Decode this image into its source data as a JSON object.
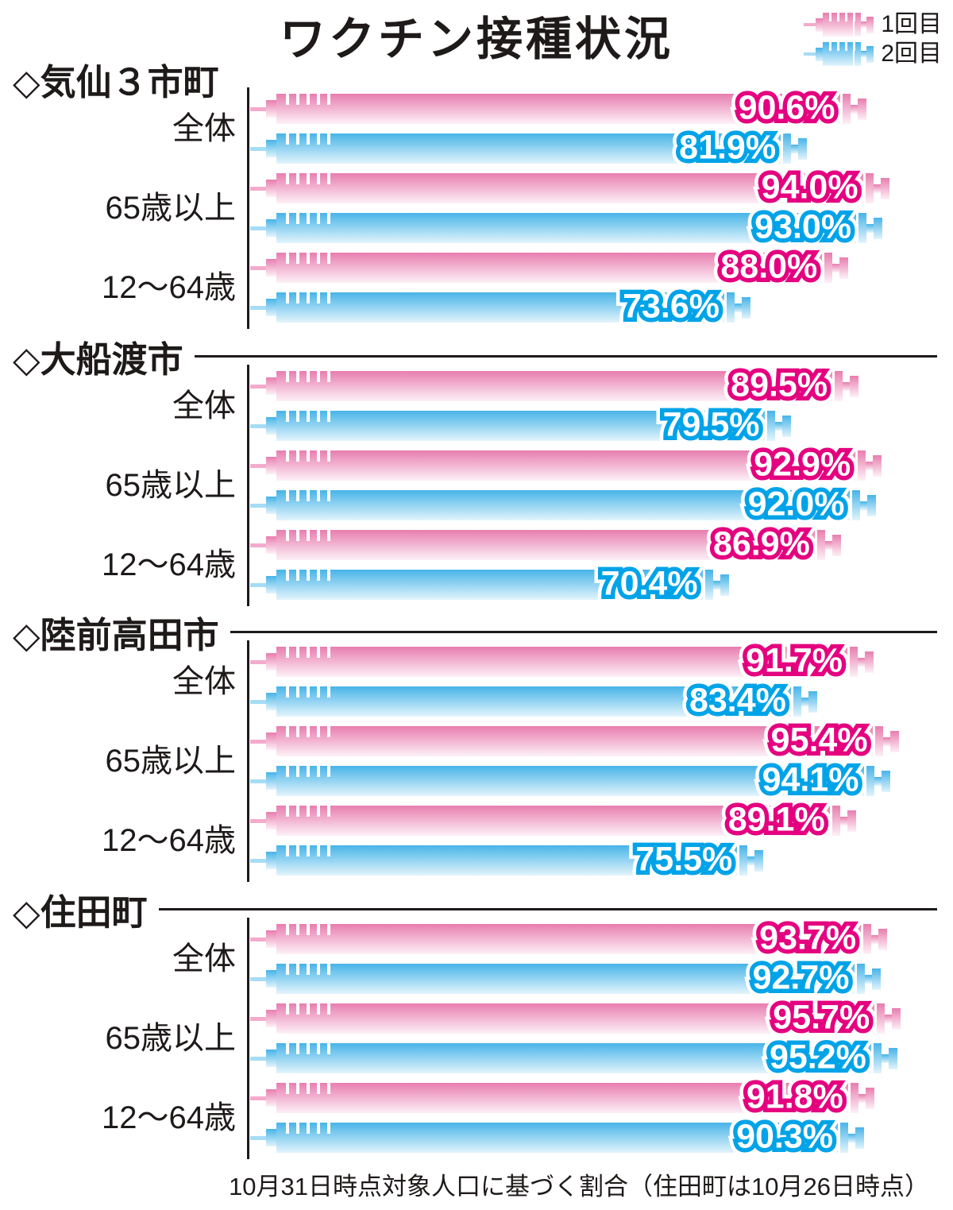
{
  "title": "ワクチン接種状況",
  "section_marker": "◇",
  "legend": [
    {
      "label": "1回目",
      "color_key": "pink"
    },
    {
      "label": "2回目",
      "color_key": "blue"
    }
  ],
  "footer": "10月31日時点対象人口に基づく割合（住田町は10月26日時点）",
  "colors": {
    "dose1_stroke": "#e4007f",
    "dose2_stroke": "#00a3e8",
    "pink_top": "#e87daf",
    "pink_bottom": "#fdf1f7",
    "blue_top": "#47b4e8",
    "blue_bottom": "#e3f4fc",
    "pink_needle": "#f3abcd",
    "blue_needle": "#a6dcf5"
  },
  "chart_data": {
    "type": "bar",
    "orientation": "horizontal",
    "unit": "%",
    "xlim": [
      0,
      100
    ],
    "title": "ワクチン接種状況",
    "series_names": [
      "1回目",
      "2回目"
    ],
    "legend_position": "top-right",
    "grid": false,
    "note": "10月31日時点対象人口に基づく割合（住田町は10月26日時点）",
    "sections": [
      {
        "name": "気仙３市町",
        "show_rule": false,
        "groups": [
          {
            "label": "全体",
            "dose1": 90.6,
            "dose2": 81.9
          },
          {
            "label": "65歳以上",
            "dose1": 94.0,
            "dose2": 93.0
          },
          {
            "label": "12～64歳",
            "dose1": 88.0,
            "dose2": 73.6
          }
        ]
      },
      {
        "name": "大船渡市",
        "show_rule": true,
        "groups": [
          {
            "label": "全体",
            "dose1": 89.5,
            "dose2": 79.5
          },
          {
            "label": "65歳以上",
            "dose1": 92.9,
            "dose2": 92.0
          },
          {
            "label": "12～64歳",
            "dose1": 86.9,
            "dose2": 70.4
          }
        ]
      },
      {
        "name": "陸前高田市",
        "show_rule": true,
        "groups": [
          {
            "label": "全体",
            "dose1": 91.7,
            "dose2": 83.4
          },
          {
            "label": "65歳以上",
            "dose1": 95.4,
            "dose2": 94.1
          },
          {
            "label": "12～64歳",
            "dose1": 89.1,
            "dose2": 75.5
          }
        ]
      },
      {
        "name": "住田町",
        "show_rule": true,
        "groups": [
          {
            "label": "全体",
            "dose1": 93.7,
            "dose2": 92.7
          },
          {
            "label": "65歳以上",
            "dose1": 95.7,
            "dose2": 95.2
          },
          {
            "label": "12～64歳",
            "dose1": 91.8,
            "dose2": 90.3
          }
        ]
      }
    ]
  }
}
